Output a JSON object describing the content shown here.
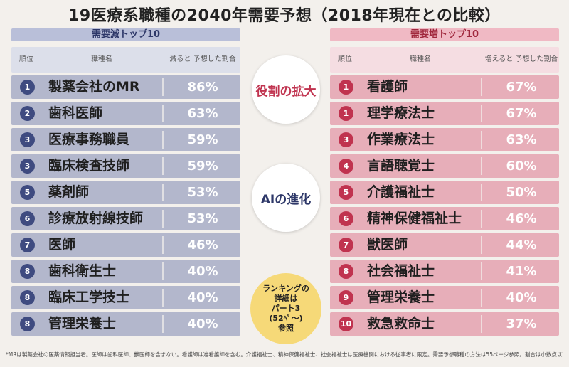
{
  "title": "19医療系職種の2040年需要予想（2018年現在との比較）",
  "decrease": {
    "panel_title": "需要減トップ10",
    "col_rank": "順位",
    "col_job": "職種名",
    "col_pct": "減ると 予想した割合",
    "rows": [
      {
        "rank": "1",
        "job": "製薬会社のMR",
        "pct": "86%"
      },
      {
        "rank": "2",
        "job": "歯科医師",
        "pct": "63%"
      },
      {
        "rank": "3",
        "job": "医療事務職員",
        "pct": "59%"
      },
      {
        "rank": "3",
        "job": "臨床検査技師",
        "pct": "59%"
      },
      {
        "rank": "5",
        "job": "薬剤師",
        "pct": "53%"
      },
      {
        "rank": "6",
        "job": "診療放射線技師",
        "pct": "53%"
      },
      {
        "rank": "7",
        "job": "医師",
        "pct": "46%"
      },
      {
        "rank": "8",
        "job": "歯科衛生士",
        "pct": "40%"
      },
      {
        "rank": "8",
        "job": "臨床工学技士",
        "pct": "40%"
      },
      {
        "rank": "8",
        "job": "管理栄養士",
        "pct": "40%"
      }
    ]
  },
  "increase": {
    "panel_title": "需要増トップ10",
    "col_rank": "順位",
    "col_job": "職種名",
    "col_pct": "増えると 予想した割合",
    "rows": [
      {
        "rank": "1",
        "job": "看護師",
        "pct": "67%"
      },
      {
        "rank": "1",
        "job": "理学療法士",
        "pct": "67%"
      },
      {
        "rank": "3",
        "job": "作業療法士",
        "pct": "63%"
      },
      {
        "rank": "4",
        "job": "言語聴覚士",
        "pct": "60%"
      },
      {
        "rank": "5",
        "job": "介護福祉士",
        "pct": "50%"
      },
      {
        "rank": "6",
        "job": "精神保健福祉士",
        "pct": "46%"
      },
      {
        "rank": "7",
        "job": "獣医師",
        "pct": "44%"
      },
      {
        "rank": "8",
        "job": "社会福祉士",
        "pct": "41%"
      },
      {
        "rank": "9",
        "job": "管理栄養士",
        "pct": "40%"
      },
      {
        "rank": "10",
        "job": "救急救命士",
        "pct": "37%"
      }
    ]
  },
  "bubbles": {
    "role": "役割の拡大",
    "ai": "AIの進化",
    "ranking": [
      "ランキングの",
      "詳細は",
      "パート3",
      "(52ﾍﾟ～)",
      "参照"
    ]
  },
  "footnote": "*MRは製薬会社の医薬情報担当者。医師は歯科医師、獣医師を含まない。看護師は准看護師を含む。介護福祉士、精神保健福祉士、社会福祉士は医療機関における従事者に限定。需要予想職種の方法は55ページ参照。割合は小数点以下を四捨五入している",
  "colors": {
    "decrease_row": "#b3b7cc",
    "decrease_badge": "#3f4b80",
    "increase_row": "#e7aeb9",
    "increase_badge": "#c0334f",
    "ranking_bubble": "#f6d978"
  },
  "chart_data": [
    {
      "type": "table",
      "title": "需要減トップ10",
      "columns": [
        "順位",
        "職種名",
        "減ると予想した割合"
      ],
      "categories": [
        "製薬会社のMR",
        "歯科医師",
        "医療事務職員",
        "臨床検査技師",
        "薬剤師",
        "診療放射線技師",
        "医師",
        "歯科衛生士",
        "臨床工学技士",
        "管理栄養士"
      ],
      "ranks": [
        1,
        2,
        3,
        3,
        5,
        6,
        7,
        8,
        8,
        8
      ],
      "values": [
        86,
        63,
        59,
        59,
        53,
        53,
        46,
        40,
        40,
        40
      ]
    },
    {
      "type": "table",
      "title": "需要増トップ10",
      "columns": [
        "順位",
        "職種名",
        "増えると予想した割合"
      ],
      "categories": [
        "看護師",
        "理学療法士",
        "作業療法士",
        "言語聴覚士",
        "介護福祉士",
        "精神保健福祉士",
        "獣医師",
        "社会福祉士",
        "管理栄養士",
        "救急救命士"
      ],
      "ranks": [
        1,
        1,
        3,
        4,
        5,
        6,
        7,
        8,
        9,
        10
      ],
      "values": [
        67,
        67,
        63,
        60,
        50,
        46,
        44,
        41,
        40,
        37
      ]
    }
  ]
}
